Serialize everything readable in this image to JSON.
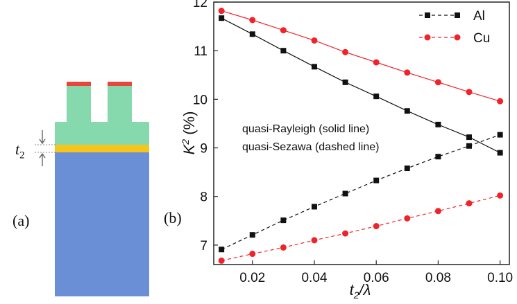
{
  "panel_a": {
    "label": "(a)",
    "thickness_label": "t",
    "thickness_sub": "2",
    "colors": {
      "substrate": "#6a8fd6",
      "interlayer": "#f6c51b",
      "piezo_film": "#86d8ad",
      "electrode": "#e8453c"
    }
  },
  "panel_b": {
    "label": "(b)"
  },
  "chart_data": {
    "type": "line",
    "xlabel": "t₂/λ",
    "ylabel": "K² (%)",
    "xlim": [
      0.0075,
      0.103
    ],
    "ylim": [
      6.6,
      12.0
    ],
    "xticks": [
      "0.02",
      "0.04",
      "0.06",
      "0.08",
      "0.10"
    ],
    "xtick_values": [
      0.02,
      0.04,
      0.06,
      0.08,
      0.1
    ],
    "yticks": [
      "7",
      "8",
      "9",
      "10",
      "11",
      "12"
    ],
    "ytick_values": [
      7,
      8,
      9,
      10,
      11,
      12
    ],
    "grid": false,
    "legend_position": "top-right",
    "annotations": [
      "quasi-Rayleigh (solid line)",
      "quasi-Sezawa (dashed line)"
    ],
    "x": [
      0.01,
      0.02,
      0.03,
      0.04,
      0.05,
      0.06,
      0.07,
      0.08,
      0.09,
      0.1
    ],
    "series": [
      {
        "name": "Al",
        "legend": true,
        "mode": "Rayleigh",
        "marker": "square",
        "dash": "solid",
        "color": "#111111",
        "values": [
          11.67,
          11.34,
          11.0,
          10.67,
          10.35,
          10.06,
          9.76,
          9.48,
          9.22,
          8.9
        ]
      },
      {
        "name": "Cu",
        "legend": true,
        "mode": "Rayleigh",
        "marker": "circle",
        "dash": "solid",
        "color": "#f0232a",
        "values": [
          11.82,
          11.63,
          11.42,
          11.21,
          10.97,
          10.76,
          10.55,
          10.35,
          10.15,
          9.96
        ]
      },
      {
        "name": "Al",
        "legend": false,
        "mode": "Sezawa",
        "marker": "square",
        "dash": "dashed",
        "color": "#111111",
        "values": [
          6.91,
          7.21,
          7.51,
          7.79,
          8.06,
          8.33,
          8.58,
          8.82,
          9.04,
          9.27
        ]
      },
      {
        "name": "Cu",
        "legend": false,
        "mode": "Sezawa",
        "marker": "circle",
        "dash": "dashed",
        "color": "#f0232a",
        "values": [
          6.68,
          6.82,
          6.95,
          7.1,
          7.24,
          7.39,
          7.55,
          7.7,
          7.86,
          8.02
        ]
      }
    ]
  }
}
